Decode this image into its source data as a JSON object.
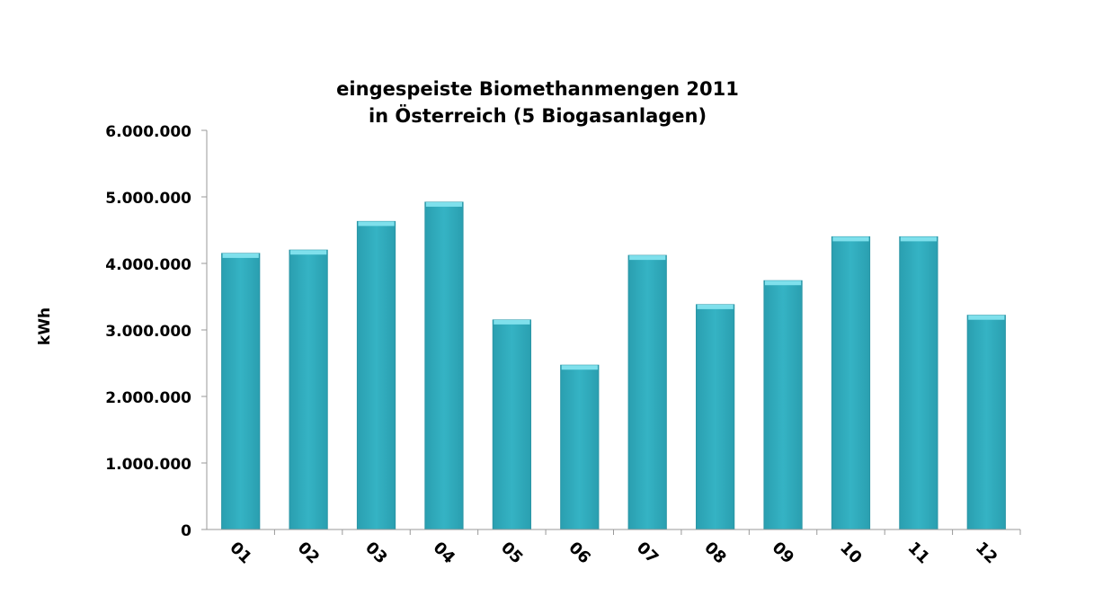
{
  "chart_data": {
    "type": "bar",
    "title": "eingespeiste Biomethanmengen 2011",
    "subtitle": "in Österreich (5 Biogasanlagen)",
    "ylabel": "kWh",
    "xlabel": "",
    "categories": [
      "01",
      "02",
      "03",
      "04",
      "05",
      "06",
      "07",
      "08",
      "09",
      "10",
      "11",
      "12"
    ],
    "values": [
      4150000,
      4200000,
      4630000,
      4920000,
      3150000,
      2470000,
      4120000,
      3380000,
      3740000,
      4400000,
      4400000,
      3220000
    ],
    "ylim": [
      0,
      6000000
    ],
    "yticks": [
      0,
      1000000,
      2000000,
      3000000,
      4000000,
      5000000,
      6000000
    ],
    "ytick_labels": [
      "0",
      "1.000.000",
      "2.000.000",
      "3.000.000",
      "4.000.000",
      "5.000.000",
      "6.000.000"
    ],
    "grid": false,
    "legend": "none",
    "bar_color": "#33adbf",
    "bar_top_color": "#7fe0ec"
  }
}
